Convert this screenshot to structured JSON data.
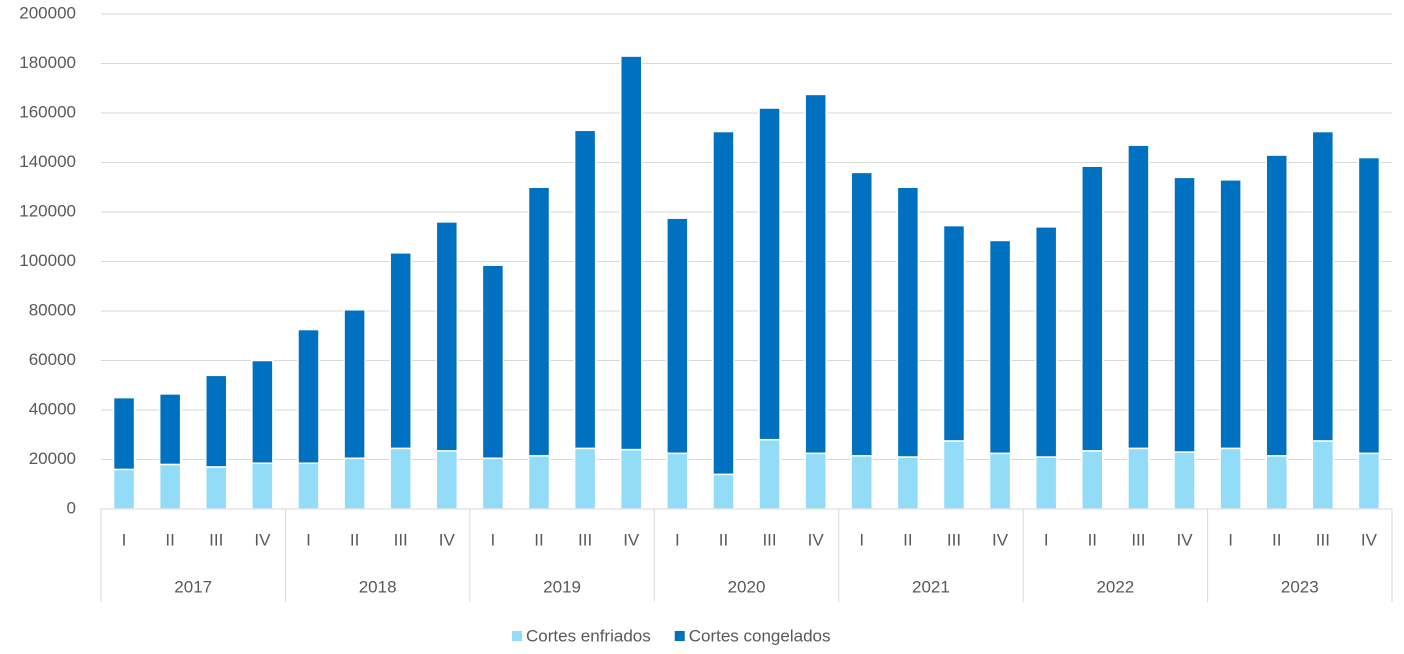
{
  "chart_data": {
    "type": "stacked_bar",
    "categories": [
      "I",
      "II",
      "III",
      "IV",
      "I",
      "II",
      "III",
      "IV",
      "I",
      "II",
      "III",
      "IV",
      "I",
      "II",
      "III",
      "IV",
      "I",
      "II",
      "III",
      "IV",
      "I",
      "II",
      "III",
      "IV",
      "I",
      "II",
      "III",
      "IV"
    ],
    "groups": [
      "2017",
      "2018",
      "2019",
      "2020",
      "2021",
      "2022",
      "2023"
    ],
    "series": [
      {
        "name": "Cortes enfriados",
        "color": "#92dcf7",
        "values": [
          16000,
          18000,
          17000,
          18500,
          18500,
          20500,
          24500,
          23500,
          20500,
          21500,
          24500,
          24000,
          22500,
          14000,
          28000,
          22500,
          21500,
          21000,
          27500,
          22500,
          21000,
          23500,
          24500,
          23000,
          24500,
          21500,
          27500,
          22500
        ]
      },
      {
        "name": "Cortes congelados",
        "color": "#0070c0",
        "values": [
          29000,
          28500,
          37000,
          41500,
          54000,
          60000,
          79000,
          92500,
          78000,
          108500,
          128500,
          159000,
          95000,
          138500,
          134000,
          145000,
          114500,
          109000,
          87000,
          86000,
          93000,
          115000,
          122500,
          111000,
          108500,
          121500,
          125000,
          119500
        ]
      }
    ],
    "ylim": [
      0,
      200000
    ],
    "yticks": [
      0,
      20000,
      40000,
      60000,
      80000,
      100000,
      120000,
      140000,
      160000,
      180000,
      200000
    ],
    "grid": true,
    "legend": "bottom"
  }
}
